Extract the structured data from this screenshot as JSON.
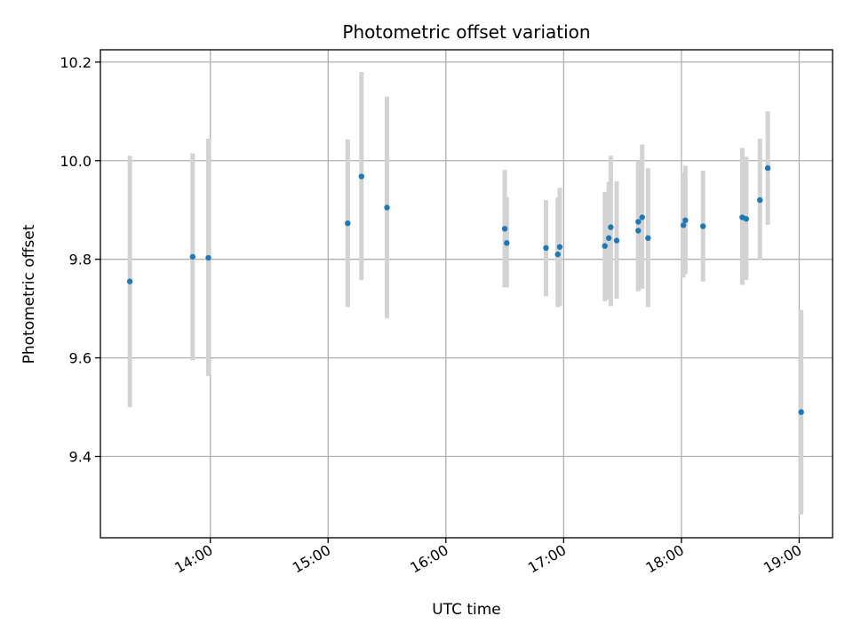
{
  "chart_data": {
    "type": "scatter",
    "title": "Photometric offset variation",
    "xlabel": "UTC time",
    "ylabel": "Photometric offset",
    "x_unit": "UTC time of day",
    "ylim": [
      9.235,
      10.225
    ],
    "xlim": [
      "13:04",
      "19:17"
    ],
    "yticks": [
      9.4,
      9.6,
      9.8,
      10.0,
      10.2
    ],
    "ytick_labels": [
      "9.4",
      "9.6",
      "9.8",
      "10.0",
      "10.2"
    ],
    "xticks": [
      "14:00",
      "15:00",
      "16:00",
      "17:00",
      "18:00",
      "19:00"
    ],
    "xtick_labels": [
      "14:00",
      "15:00",
      "16:00",
      "17:00",
      "18:00",
      "19:00"
    ],
    "grid": true,
    "legend": "none",
    "marker_color": "#1f77b4",
    "errorbar_color": "#d3d3d3",
    "points": [
      {
        "x": "13:19",
        "y": 9.755,
        "ylow": 9.5,
        "yhigh": 10.01
      },
      {
        "x": "13:51",
        "y": 9.805,
        "ylow": 9.595,
        "yhigh": 10.015
      },
      {
        "x": "13:59",
        "y": 9.803,
        "ylow": 9.563,
        "yhigh": 10.045
      },
      {
        "x": "15:10",
        "y": 9.873,
        "ylow": 9.703,
        "yhigh": 10.043
      },
      {
        "x": "15:17",
        "y": 9.968,
        "ylow": 9.758,
        "yhigh": 10.18
      },
      {
        "x": "15:30",
        "y": 9.905,
        "ylow": 9.68,
        "yhigh": 10.13
      },
      {
        "x": "16:30",
        "y": 9.862,
        "ylow": 9.743,
        "yhigh": 9.981
      },
      {
        "x": "16:31",
        "y": 9.833,
        "ylow": 9.743,
        "yhigh": 9.926
      },
      {
        "x": "16:51",
        "y": 9.823,
        "ylow": 9.725,
        "yhigh": 9.92
      },
      {
        "x": "16:57",
        "y": 9.81,
        "ylow": 9.703,
        "yhigh": 9.925
      },
      {
        "x": "16:58",
        "y": 9.825,
        "ylow": 9.705,
        "yhigh": 9.945
      },
      {
        "x": "17:21",
        "y": 9.827,
        "ylow": 9.715,
        "yhigh": 9.937
      },
      {
        "x": "17:23",
        "y": 9.843,
        "ylow": 9.718,
        "yhigh": 9.957
      },
      {
        "x": "17:24",
        "y": 9.865,
        "ylow": 9.705,
        "yhigh": 10.01
      },
      {
        "x": "17:27",
        "y": 9.838,
        "ylow": 9.72,
        "yhigh": 9.958
      },
      {
        "x": "17:38",
        "y": 9.858,
        "ylow": 9.735,
        "yhigh": 9.99
      },
      {
        "x": "17:38",
        "y": 9.876,
        "ylow": 9.738,
        "yhigh": 10.0
      },
      {
        "x": "17:40",
        "y": 9.885,
        "ylow": 9.74,
        "yhigh": 10.033
      },
      {
        "x": "17:43",
        "y": 9.843,
        "ylow": 9.703,
        "yhigh": 9.985
      },
      {
        "x": "18:01",
        "y": 9.869,
        "ylow": 9.763,
        "yhigh": 9.976
      },
      {
        "x": "18:02",
        "y": 9.879,
        "ylow": 9.77,
        "yhigh": 9.99
      },
      {
        "x": "18:11",
        "y": 9.867,
        "ylow": 9.755,
        "yhigh": 9.98
      },
      {
        "x": "18:31",
        "y": 9.885,
        "ylow": 9.748,
        "yhigh": 10.026
      },
      {
        "x": "18:33",
        "y": 9.882,
        "ylow": 9.758,
        "yhigh": 10.008
      },
      {
        "x": "18:40",
        "y": 9.92,
        "ylow": 9.798,
        "yhigh": 10.045
      },
      {
        "x": "18:44",
        "y": 9.985,
        "ylow": 9.87,
        "yhigh": 10.1
      },
      {
        "x": "19:01",
        "y": 9.49,
        "ylow": 9.282,
        "yhigh": 9.697
      }
    ]
  }
}
